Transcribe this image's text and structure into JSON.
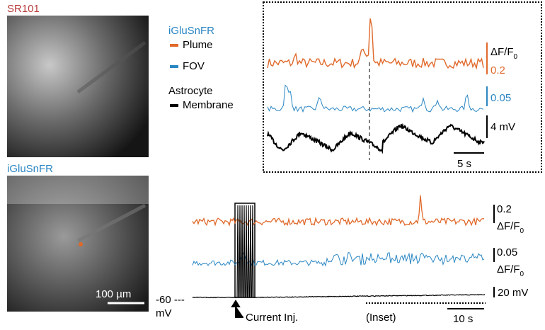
{
  "images": {
    "sr101": {
      "label": "SR101"
    },
    "iglusnfr": {
      "label": "iGluSnFR",
      "scale_bar": "100 µm"
    }
  },
  "legend": {
    "title": "iGluSnFR",
    "items": [
      {
        "label": "Plume",
        "color": "#e0692a"
      },
      {
        "label": "FOV",
        "color": "#2a86c2"
      }
    ],
    "astrocyte_title": "Astrocyte",
    "astrocyte_item": {
      "label": "Membrane",
      "color": "#000000"
    }
  },
  "inset": {
    "df_label": {
      "text": "ΔF/F",
      "subscript": "0"
    },
    "plume_scale": "0.2",
    "fov_scale": "0.05",
    "membrane_scale": "4 mV",
    "time_scale": "5 s"
  },
  "overview": {
    "plume_scale": "0.2",
    "plume_df": {
      "text": "ΔF/F",
      "subscript": "0"
    },
    "fov_scale": "0.05",
    "fov_df": {
      "text": "ΔF/F",
      "subscript": "0"
    },
    "membrane_scale": "20 mV",
    "rest_potential": "-60 ---",
    "rest_unit": "mV",
    "current_label": "Current Inj.",
    "inset_label": "(Inset)",
    "time_scale": "10 s"
  }
}
